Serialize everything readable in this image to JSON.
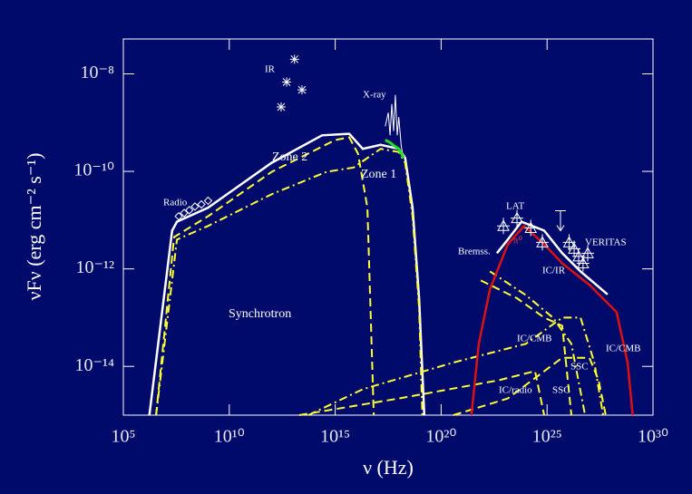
{
  "chart_data": {
    "type": "line",
    "xlabel": "ν (Hz)",
    "ylabel": "νFν (erg cm⁻² s⁻¹)",
    "xscale": "log",
    "yscale": "log",
    "xlim": [
      100000.0,
      1e+30
    ],
    "ylim": [
      1e-15,
      5.2e-08
    ],
    "xticks": [
      {
        "value": 100000.0,
        "label": "10⁵"
      },
      {
        "value": 10000000000.0,
        "label": "10¹⁰"
      },
      {
        "value": 1000000000000000.0,
        "label": "10¹⁵"
      },
      {
        "value": 1e+20,
        "label": "10²⁰"
      },
      {
        "value": 1e+25,
        "label": "10²⁵"
      },
      {
        "value": 1e+30,
        "label": "10³⁰"
      }
    ],
    "yticks": [
      {
        "value": 1e-14,
        "label": "10⁻¹⁴"
      },
      {
        "value": 1e-12,
        "label": "10⁻¹²"
      },
      {
        "value": 1e-10,
        "label": "10⁻¹⁰"
      },
      {
        "value": 1e-08,
        "label": "10⁻⁸"
      }
    ],
    "annotations": [
      "Radio",
      "IR",
      "X-ray",
      "Zone 2",
      "Zone 1",
      "Synchrotron",
      "LAT",
      "VERITAS",
      "Bremss.",
      "π⁰",
      "IC/IR",
      "IC/CMB",
      "IC/CMB",
      "SSC",
      "SSC",
      "IC/radio"
    ],
    "series": [
      {
        "color": "#ffffff",
        "style": "solid",
        "width": 2.5,
        "x": [
          1700000.0,
          20000000.0,
          34000000.0,
          1000000000.0,
          1000000000000.0,
          240000000000000.0,
          4600000000000000.0,
          2e+16,
          1.4e+17,
          1e+18,
          2e+18,
          4.5e+18,
          9.1e+18,
          1.6e+19
        ],
        "values": [
          1e-15,
          6.1e-12,
          9.3e-12,
          1.8e-11,
          1.5e-10,
          5.5e-10,
          5.9e-10,
          2.9e-10,
          3.5e-10,
          2.9e-10,
          1.9e-10,
          1.8e-11,
          2.5e-13,
          1e-15
        ]
      },
      {
        "color": "#ffff33",
        "style": "dashed",
        "width": 2,
        "x": [
          3500000.0,
          25000000.0,
          1000000000.0,
          1000000000000.0,
          1000000000000000.0,
          4600000000000000.0,
          1.2e+16,
          3.3e+16,
          6.6e+16
        ],
        "values": [
          1e-15,
          4.5e-12,
          1.2e-11,
          9.8e-11,
          4.4e-10,
          5e-10,
          2.3e-10,
          1.8e-11,
          1e-15
        ]
      },
      {
        "color": "#ffff33",
        "style": "dashdot",
        "width": 2,
        "x": [
          3500000.0,
          34000000.0,
          1000000000.0,
          1000000000000.0,
          390000000000000.0,
          7400000000000000.0,
          1.4e+17,
          1e+18,
          2e+18,
          4.5e+18,
          9.1e+18,
          1.3e+19
        ],
        "values": [
          1e-15,
          4e-12,
          7.6e-12,
          3.4e-11,
          9.8e-11,
          1.2e-10,
          2.9e-10,
          2.5e-10,
          1.5e-10,
          1.2e-11,
          1.6e-13,
          1e-15
        ]
      },
      {
        "color": "#ffffff",
        "style": "solid",
        "width": 1,
        "x": [
          2.3e+17,
          3.2e+17,
          3.9e+17,
          4.7e+17,
          5.7e+17,
          6.9e+17,
          8.5e+17,
          1e+18,
          1.3e+18,
          1.5e+18
        ],
        "values": [
          8.4e-10,
          1.6e-09,
          5.5e-10,
          2.4e-09,
          6.7e-10,
          3.7e-09,
          5.5e-10,
          1.3e-09,
          3.5e-10,
          2.3e-10
        ]
      },
      {
        "color": "#22dd22",
        "style": "solid",
        "width": 3,
        "x": [
          2.3e+17,
          3.9e+17,
          6.3e+17,
          1e+18,
          1.7e+18
        ],
        "values": [
          4.4e-10,
          3.9e-10,
          3.3e-10,
          2.9e-10,
          1.9e-10
        ]
      },
      {
        "color": "#ffff33",
        "style": "dashdot",
        "width": 2,
        "x": [
          54000000000000.0,
          2e+16,
          3.8e+20,
          1e+24,
          5.2e+25,
          3.8e+26,
          1.7e+27,
          4.4e+27
        ],
        "values": [
          1e-15,
          3.4e-15,
          1.2e-14,
          2.9e-14,
          1e-13,
          1e-13,
          1.2e-14,
          1e-15
        ]
      },
      {
        "color": "#ffff33",
        "style": "dashed",
        "width": 2,
        "x": [
          7.4e+21,
          3.8e+23,
          7.3e+24,
          5.2e+25,
          1.4e+26
        ],
        "values": [
          5.8e-13,
          2.5e-13,
          1e-13,
          6.8e-14,
          1e-15
        ]
      },
      {
        "color": "#ffff33",
        "style": "dashdot",
        "width": 2,
        "x": [
          2e+22,
          1e+24,
          1.9e+25,
          1.4e+26,
          6.2e+26
        ],
        "values": [
          8.9e-13,
          2.9e-13,
          1e-13,
          2.9e-14,
          1e-15
        ]
      },
      {
        "color": "#ffff33",
        "style": "dashed",
        "width": 2,
        "x": [
          20000000000000.0,
          1e+18,
          5.3e+22,
          2.7e+24,
          7.3e+24
        ],
        "values": [
          1e-15,
          2.2e-15,
          5.2e-15,
          8e-15,
          1e-15
        ]
      },
      {
        "color": "#ffff33",
        "style": "dashed",
        "width": 2,
        "x": [
          3.8e+20,
          1.4e+23,
          5.2e+25,
          1e+27,
          2.7e+27,
          5.9e+27
        ],
        "values": [
          1e-15,
          2.2e-15,
          1.5e-14,
          1.5e-14,
          5.2e-15,
          1e-15
        ]
      },
      {
        "color": "#dd1111",
        "style": "solid",
        "width": 2.5,
        "x": [
          2.7e+21,
          6e+21,
          2e+22,
          1.4e+23,
          8.3e+23,
          7.3e+24,
          5.2e+25,
          1e+27,
          1.9e+28,
          6.3e+28,
          1.1e+29
        ],
        "values": [
          1e-15,
          2.9e-14,
          3.8e-13,
          3.2e-12,
          7.6e-12,
          3.2e-12,
          1.3e-12,
          4.7e-13,
          1.3e-13,
          1.2e-14,
          1e-15
        ]
      },
      {
        "color": "#ffffff",
        "style": "solid",
        "width": 2.5,
        "x": [
          4.3e+22,
          1.4e+23,
          6.2e+23,
          7.3e+24,
          5.2e+25,
          3.8e+26,
          7.2e+27
        ],
        "values": [
          2.1e-12,
          4e-12,
          9.3e-12,
          6.1e-12,
          2.1e-12,
          8.9e-13,
          3e-13
        ]
      },
      {
        "color": "#ffffff",
        "marker": "diamond",
        "x": [
          41000000.0,
          74000000.0,
          130000000.0,
          240000000.0,
          480000000.0,
          1000000000.0
        ],
        "values": [
          1.2e-11,
          1.4e-11,
          1.6e-11,
          1.9e-11,
          2.1e-11,
          2.5e-11
        ]
      },
      {
        "color": "#ffffff",
        "marker": "star",
        "x": [
          12000000000000.0,
          5100000000000.0,
          27000000000000.0,
          2800000000000.0
        ],
        "values": [
          2e-08,
          6.8e-09,
          4.7e-09,
          2.1e-09
        ]
      },
      {
        "color": "#ffffff",
        "marker": "triangle",
        "x": [
          8.7e+22,
          3.8e+23,
          1.7e+24,
          6e+24
        ],
        "values": [
          7.6e-12,
          1.1e-11,
          6.9e-12,
          3.5e-12
        ]
      },
      {
        "color": "#ffffff",
        "marker": "triangle",
        "x": [
          1.1e+26,
          1.9e+26,
          3.1e+26,
          5e+26,
          8.3e+26
        ],
        "values": [
          3.5e-12,
          2.6e-12,
          1.8e-12,
          1.3e-12,
          2.1e-12
        ]
      },
      {
        "color": "#ffffff",
        "marker": "arrow",
        "x": [
          4.3e+25
        ],
        "values": [
          9.3e-12
        ]
      }
    ]
  }
}
